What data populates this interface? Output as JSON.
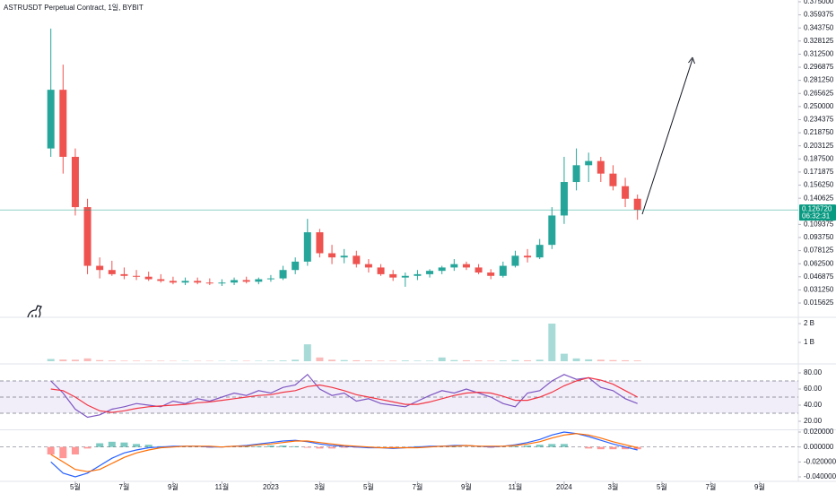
{
  "chart_data": [
    {
      "type": "candlestick",
      "title": "ASTRUSDT Perpetual Contract, 1일, BYBIT",
      "up_color": "#26a69a",
      "down_color": "#ef5350",
      "x": [
        3,
        3.5,
        4,
        4.5,
        5,
        5.5,
        6,
        6.5,
        7,
        7.5,
        8,
        8.5,
        9,
        9.5,
        10,
        10.5,
        11,
        11.5,
        12,
        12.5,
        13,
        13.5,
        14,
        14.5,
        15,
        15.5,
        16,
        16.5,
        17,
        17.5,
        18,
        18.5,
        19,
        19.5,
        20,
        20.5,
        21,
        21.5,
        22,
        22.5,
        23,
        23.5,
        24,
        24.5,
        25,
        25.5,
        26,
        26.5,
        27
      ],
      "open": [
        0.2,
        0.27,
        0.19,
        0.13,
        0.06,
        0.055,
        0.05,
        0.048,
        0.047,
        0.044,
        0.042,
        0.04,
        0.042,
        0.04,
        0.039,
        0.04,
        0.043,
        0.041,
        0.044,
        0.045,
        0.055,
        0.065,
        0.1,
        0.075,
        0.07,
        0.072,
        0.062,
        0.058,
        0.05,
        0.046,
        0.048,
        0.05,
        0.054,
        0.058,
        0.062,
        0.058,
        0.052,
        0.048,
        0.06,
        0.072,
        0.07,
        0.085,
        0.12,
        0.16,
        0.18,
        0.185,
        0.17,
        0.155,
        0.14
      ],
      "high": [
        0.343,
        0.3,
        0.2,
        0.14,
        0.07,
        0.066,
        0.058,
        0.055,
        0.053,
        0.05,
        0.047,
        0.046,
        0.046,
        0.045,
        0.044,
        0.046,
        0.047,
        0.046,
        0.049,
        0.06,
        0.07,
        0.116,
        0.104,
        0.085,
        0.08,
        0.078,
        0.068,
        0.062,
        0.055,
        0.052,
        0.055,
        0.056,
        0.06,
        0.068,
        0.065,
        0.062,
        0.056,
        0.065,
        0.078,
        0.08,
        0.092,
        0.13,
        0.19,
        0.2,
        0.195,
        0.19,
        0.18,
        0.165,
        0.145
      ],
      "low": [
        0.19,
        0.17,
        0.12,
        0.05,
        0.045,
        0.048,
        0.044,
        0.043,
        0.042,
        0.04,
        0.038,
        0.037,
        0.038,
        0.037,
        0.036,
        0.037,
        0.039,
        0.038,
        0.041,
        0.043,
        0.05,
        0.06,
        0.07,
        0.062,
        0.063,
        0.058,
        0.052,
        0.048,
        0.042,
        0.035,
        0.043,
        0.046,
        0.05,
        0.054,
        0.055,
        0.05,
        0.044,
        0.046,
        0.058,
        0.064,
        0.068,
        0.08,
        0.11,
        0.15,
        0.16,
        0.16,
        0.15,
        0.13,
        0.115
      ],
      "close": [
        0.27,
        0.19,
        0.13,
        0.06,
        0.055,
        0.05,
        0.048,
        0.047,
        0.044,
        0.042,
        0.04,
        0.042,
        0.04,
        0.039,
        0.04,
        0.043,
        0.041,
        0.044,
        0.045,
        0.055,
        0.065,
        0.1,
        0.075,
        0.07,
        0.072,
        0.062,
        0.058,
        0.05,
        0.046,
        0.048,
        0.05,
        0.054,
        0.058,
        0.062,
        0.058,
        0.052,
        0.048,
        0.06,
        0.072,
        0.07,
        0.085,
        0.12,
        0.16,
        0.18,
        0.185,
        0.17,
        0.155,
        0.14,
        0.12672
      ],
      "xlim": [
        0.92,
        33.58
      ],
      "ylim": [
        0.0007,
        0.3771
      ],
      "yticks": [
        {
          "value": 0.375,
          "label": "0.375000"
        },
        {
          "value": 0.359375,
          "label": "0.359375"
        },
        {
          "value": 0.34375,
          "label": "0.343750"
        },
        {
          "value": 0.328125,
          "label": "0.328125"
        },
        {
          "value": 0.3125,
          "label": "0.312500"
        },
        {
          "value": 0.296875,
          "label": "0.296875"
        },
        {
          "value": 0.28125,
          "label": "0.281250"
        },
        {
          "value": 0.265625,
          "label": "0.265625"
        },
        {
          "value": 0.25,
          "label": "0.250000"
        },
        {
          "value": 0.234375,
          "label": "0.234375"
        },
        {
          "value": 0.21875,
          "label": "0.218750"
        },
        {
          "value": 0.203125,
          "label": "0.203125"
        },
        {
          "value": 0.1875,
          "label": "0.187500"
        },
        {
          "value": 0.171875,
          "label": "0.171875"
        },
        {
          "value": 0.15625,
          "label": "0.156250"
        },
        {
          "value": 0.140625,
          "label": "0.140625"
        },
        {
          "value": 0.109375,
          "label": "0.109375"
        },
        {
          "value": 0.09375,
          "label": "0.093750"
        },
        {
          "value": 0.078125,
          "label": "0.078125"
        },
        {
          "value": 0.0625,
          "label": "0.062500"
        },
        {
          "value": 0.046875,
          "label": "0.046875"
        },
        {
          "value": 0.03125,
          "label": "0.031250"
        },
        {
          "value": 0.015625,
          "label": "0.015625"
        }
      ],
      "price_line": {
        "value": 0.12672,
        "label": "0.126720",
        "countdown": "06:32:31",
        "color": "#089981"
      }
    },
    {
      "type": "bar",
      "color": "#26a69a66",
      "down_color": "#ef535066",
      "x": [
        3,
        3.5,
        4,
        4.5,
        5,
        5.5,
        6,
        6.5,
        7,
        7.5,
        8,
        8.5,
        9,
        9.5,
        10,
        10.5,
        11,
        11.5,
        12,
        12.5,
        13,
        13.5,
        14,
        14.5,
        15,
        15.5,
        16,
        16.5,
        17,
        17.5,
        18,
        18.5,
        19,
        19.5,
        20,
        20.5,
        21,
        21.5,
        22,
        22.5,
        23,
        23.5,
        24,
        24.5,
        25,
        25.5,
        26,
        26.5,
        27
      ],
      "values": [
        120000000,
        90000000,
        80000000,
        150000000,
        60000000,
        40000000,
        30000000,
        30000000,
        25000000,
        25000000,
        20000000,
        20000000,
        20000000,
        20000000,
        20000000,
        25000000,
        25000000,
        25000000,
        30000000,
        40000000,
        80000000,
        900000000,
        200000000,
        80000000,
        60000000,
        50000000,
        40000000,
        30000000,
        30000000,
        40000000,
        30000000,
        30000000,
        200000000,
        60000000,
        50000000,
        40000000,
        30000000,
        40000000,
        60000000,
        50000000,
        80000000,
        2000000000,
        400000000,
        150000000,
        100000000,
        80000000,
        60000000,
        50000000,
        40000000
      ],
      "xlim": [
        0.92,
        33.58
      ],
      "ylim": [
        0,
        2430000000
      ],
      "yticks": [
        {
          "value": 1000000000,
          "label": "1 B"
        },
        {
          "value": 2000000000,
          "label": "2 B"
        }
      ]
    },
    {
      "type": "line",
      "x": [
        3,
        3.5,
        4,
        4.5,
        5,
        5.5,
        6,
        6.5,
        7,
        7.5,
        8,
        8.5,
        9,
        9.5,
        10,
        10.5,
        11,
        11.5,
        12,
        12.5,
        13,
        13.5,
        14,
        14.5,
        15,
        15.5,
        16,
        16.5,
        17,
        17.5,
        18,
        18.5,
        19,
        19.5,
        20,
        20.5,
        21,
        21.5,
        22,
        22.5,
        23,
        23.5,
        24,
        24.5,
        25,
        25.5,
        26,
        26.5,
        27
      ],
      "series": [
        {
          "color": "#7e57c2",
          "values": [
            70,
            55,
            35,
            25,
            28,
            35,
            38,
            42,
            40,
            38,
            45,
            42,
            48,
            45,
            50,
            55,
            52,
            58,
            55,
            62,
            65,
            78,
            60,
            52,
            55,
            45,
            48,
            42,
            40,
            38,
            45,
            52,
            58,
            55,
            60,
            55,
            50,
            42,
            38,
            55,
            58,
            70,
            78,
            72,
            74,
            62,
            58,
            48,
            42
          ]
        },
        {
          "color": "#f23645",
          "values": [
            60,
            58,
            50,
            40,
            33,
            31,
            33,
            36,
            38,
            39,
            40,
            41,
            43,
            44,
            46,
            48,
            50,
            52,
            53,
            56,
            58,
            63,
            65,
            62,
            58,
            53,
            50,
            47,
            44,
            41,
            41,
            44,
            48,
            52,
            55,
            56,
            55,
            51,
            46,
            46,
            50,
            56,
            64,
            70,
            74,
            71,
            66,
            58,
            50
          ]
        }
      ],
      "levels": [
        30,
        50,
        70
      ],
      "band_color": "#7e57c21a",
      "xlim": [
        0.92,
        33.58
      ],
      "ylim": [
        11.1,
        88.9
      ],
      "yticks": [
        {
          "value": 20,
          "label": "20.00"
        },
        {
          "value": 40,
          "label": "40.00"
        },
        {
          "value": 60,
          "label": "60.00"
        },
        {
          "value": 80,
          "label": "80.00"
        }
      ]
    },
    {
      "type": "line",
      "x": [
        3,
        3.5,
        4,
        4.5,
        5,
        5.5,
        6,
        6.5,
        7,
        7.5,
        8,
        8.5,
        9,
        9.5,
        10,
        10.5,
        11,
        11.5,
        12,
        12.5,
        13,
        13.5,
        14,
        14.5,
        15,
        15.5,
        16,
        16.5,
        17,
        17.5,
        18,
        18.5,
        19,
        19.5,
        20,
        20.5,
        21,
        21.5,
        22,
        22.5,
        23,
        23.5,
        24,
        24.5,
        25,
        25.5,
        26,
        26.5,
        27
      ],
      "series": [
        {
          "style": "histogram",
          "color": "#26a69a",
          "negative_color": "#ff5252",
          "values": [
            -0.01,
            -0.015,
            -0.01,
            -0.002,
            0.005,
            0.007,
            0.006,
            0.004,
            0.003,
            0.001,
            0.001,
            0,
            0,
            -0.001,
            0,
            0,
            0.001,
            0.001,
            0.002,
            0.002,
            0.001,
            -0.001,
            -0.002,
            -0.002,
            -0.001,
            -0.001,
            -0.001,
            0,
            -0.001,
            0,
            0.001,
            0.001,
            0,
            0.001,
            0,
            0,
            -0.001,
            0,
            0.001,
            0.002,
            0.003,
            0.004,
            0.004,
            0,
            -0.002,
            -0.003,
            -0.003,
            -0.003,
            -0.003
          ]
        },
        {
          "color": "#2962ff",
          "values": [
            -0.02,
            -0.035,
            -0.04,
            -0.035,
            -0.025,
            -0.015,
            -0.008,
            -0.004,
            -0.001,
            0,
            0.001,
            0.001,
            0.001,
            0,
            0,
            0.001,
            0.002,
            0.004,
            0.006,
            0.008,
            0.009,
            0.007,
            0.004,
            0.002,
            0.001,
            0,
            -0.001,
            -0.001,
            -0.002,
            -0.001,
            0,
            0.001,
            0.001,
            0.002,
            0.002,
            0.001,
            0,
            0.001,
            0.003,
            0.006,
            0.01,
            0.016,
            0.02,
            0.018,
            0.014,
            0.009,
            0.004,
            0,
            -0.004
          ]
        },
        {
          "color": "#ff6d00",
          "values": [
            -0.01,
            -0.02,
            -0.03,
            -0.033,
            -0.03,
            -0.022,
            -0.014,
            -0.008,
            -0.004,
            -0.001,
            0,
            0.001,
            0.001,
            0.001,
            0,
            0.001,
            0.001,
            0.003,
            0.004,
            0.006,
            0.008,
            0.008,
            0.006,
            0.004,
            0.002,
            0.001,
            0,
            -0.001,
            -0.001,
            -0.001,
            -0.001,
            0,
            0.001,
            0.001,
            0.002,
            0.001,
            0.001,
            0.001,
            0.002,
            0.004,
            0.007,
            0.012,
            0.016,
            0.018,
            0.016,
            0.012,
            0.007,
            0.003,
            -0.001
          ]
        }
      ],
      "xlim": [
        0.92,
        33.58
      ],
      "ylim": [
        -0.046,
        0.0248
      ],
      "yticks": [
        {
          "value": 0.02,
          "label": "0.020000"
        },
        {
          "value": 0,
          "label": "0.000000"
        },
        {
          "value": -0.02,
          "label": "-0.020000"
        },
        {
          "value": -0.04,
          "label": "-0.040000"
        }
      ],
      "xticks": [
        {
          "value": 4,
          "label": "5월"
        },
        {
          "value": 6,
          "label": "7월"
        },
        {
          "value": 8,
          "label": "9월"
        },
        {
          "value": 10,
          "label": "11월"
        },
        {
          "value": 12,
          "label": "2023"
        },
        {
          "value": 14,
          "label": "3월"
        },
        {
          "value": 16,
          "label": "5월"
        },
        {
          "value": 18,
          "label": "7월"
        },
        {
          "value": 20,
          "label": "9월"
        },
        {
          "value": 22,
          "label": "11월"
        },
        {
          "value": 24,
          "label": "2024"
        },
        {
          "value": 26,
          "label": "3월"
        },
        {
          "value": 28,
          "label": "5월"
        },
        {
          "value": 30,
          "label": "7월"
        },
        {
          "value": 32,
          "label": "9월"
        }
      ]
    }
  ]
}
